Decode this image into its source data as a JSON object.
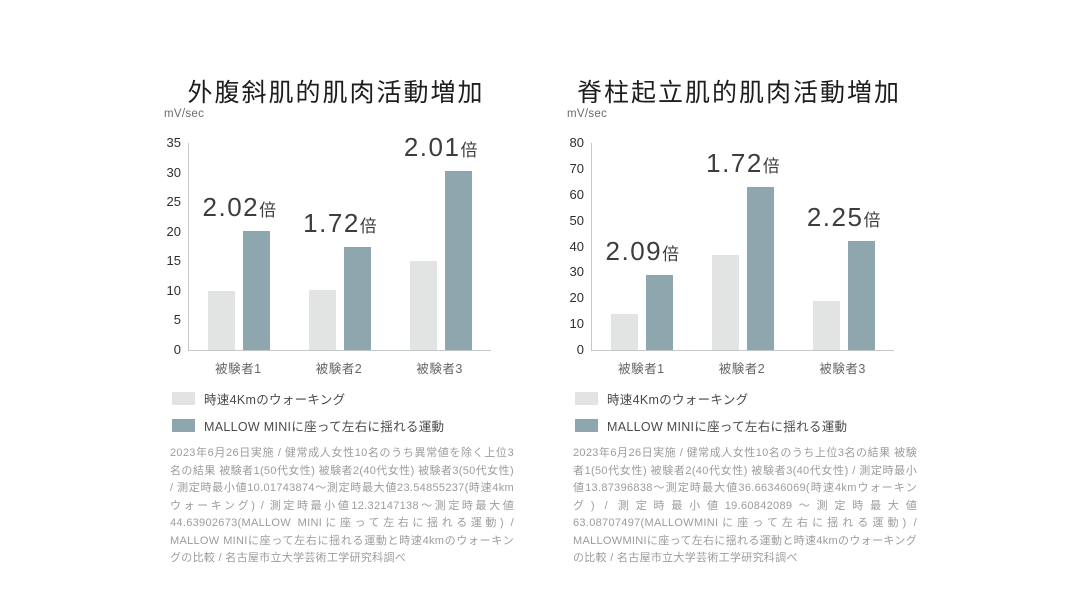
{
  "page": {
    "background": "#ffffff"
  },
  "legend": {
    "walking": "時速4Kmのウォーキング",
    "mallow": "MALLOW MINIに座って左右に揺れる運動"
  },
  "colors": {
    "walking_bar": "#e2e4e4",
    "mallow_bar": "#8ea6ad",
    "axis_line": "#c3c8ca",
    "title_text": "#1e1e1e",
    "tick_text": "#2e2e2e",
    "category_text": "#666666",
    "legend_text": "#4a4a4a",
    "ratio_text": "#3d3d3d",
    "unit_text": "#6b6b6b",
    "footnote_text": "#9c9c9c"
  },
  "chart_data": [
    {
      "type": "bar",
      "title": "外腹斜肌的肌肉活動増加",
      "ylabel": "mV/sec",
      "xlabel": "",
      "ylim": [
        0,
        35
      ],
      "ystep": 5,
      "grid": false,
      "legend_position": "bottom",
      "categories": [
        "被験者1",
        "被験者2",
        "被験者3"
      ],
      "series": [
        {
          "name": "時速4Kmのウォーキング",
          "values": [
            10.0,
            10.2,
            15.0
          ]
        },
        {
          "name": "MALLOW MINIに座って左右に揺れる運動",
          "values": [
            20.2,
            17.5,
            30.2
          ]
        }
      ],
      "ratios": [
        "2.02",
        "1.72",
        "2.01"
      ],
      "ratio_suffix": "倍",
      "footnote": "2023年6月26日実施 / 健常成人女性10名のうち異常値を除く上位3名の結果 被験者1(50代女性) 被験者2(40代女性) 被験者3(50代女性) / 測定時最小値10.01743874〜測定時最大値23.54855237(時速4kmウォーキング) / 測定時最小値12.32147138〜測定時最大値44.63902673(MALLOW MINIに座って左右に揺れる運動) / MALLOW MINIに座って左右に揺れる運動と時速4kmのウォーキングの比較 / 名古屋市立大学芸術工学研究科調べ"
    },
    {
      "type": "bar",
      "title": "脊柱起立肌的肌肉活動増加",
      "ylabel": "mV/sec",
      "xlabel": "",
      "ylim": [
        0,
        80
      ],
      "ystep": 10,
      "grid": false,
      "legend_position": "bottom",
      "categories": [
        "被験者1",
        "被験者2",
        "被験者3"
      ],
      "series": [
        {
          "name": "時速4Kmのウォーキング",
          "values": [
            13.9,
            36.6,
            18.8
          ]
        },
        {
          "name": "MALLOW MINIに座って左右に揺れる運動",
          "values": [
            29.0,
            63.0,
            42.3
          ]
        }
      ],
      "ratios": [
        "2.09",
        "1.72",
        "2.25"
      ],
      "ratio_suffix": "倍",
      "footnote": "2023年6月26日実施 / 健常成人女性10名のうち上位3名の結果 被験者1(50代女性) 被験者2(40代女性) 被験者3(40代女性) / 測定時最小値13.87396838〜測定時最大値36.66346069(時速4kmウォーキング) / 測定時最小値19.60842089〜測定時最大値63.08707497(MALLOWMINIに座って左右に揺れる運動) / MALLOWMINIに座って左右に揺れる運動と時速4kmのウォーキングの比較 / 名古屋市立大学芸術工学研究科調べ"
    }
  ]
}
